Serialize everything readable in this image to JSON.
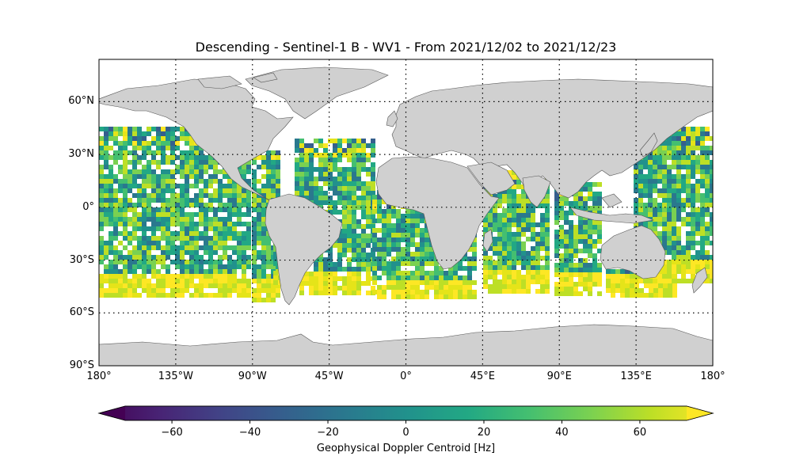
{
  "title": "Descending - Sentinel-1 B - WV1 - From 2021/12/02 to 2021/12/23",
  "lat_labels": [
    {
      "value": 60,
      "text": "60°N"
    },
    {
      "value": 30,
      "text": "30°N"
    },
    {
      "value": 0,
      "text": "0°"
    },
    {
      "value": -30,
      "text": "30°S"
    },
    {
      "value": -60,
      "text": "60°S"
    },
    {
      "value": -90,
      "text": "90°S"
    }
  ],
  "lon_labels": [
    {
      "value": -180,
      "text": "180°"
    },
    {
      "value": -135,
      "text": "135°W"
    },
    {
      "value": -90,
      "text": "90°W"
    },
    {
      "value": -45,
      "text": "45°W"
    },
    {
      "value": 0,
      "text": "0°"
    },
    {
      "value": 45,
      "text": "45°E"
    },
    {
      "value": 90,
      "text": "90°E"
    },
    {
      "value": 135,
      "text": "135°E"
    },
    {
      "value": 180,
      "text": "180°"
    }
  ],
  "colorbar": {
    "label": "Geophysical Doppler Centroid [Hz]",
    "min": -72,
    "max": 72,
    "ticks": [
      {
        "value": -60,
        "text": "−60"
      },
      {
        "value": -40,
        "text": "−40"
      },
      {
        "value": -20,
        "text": "−20"
      },
      {
        "value": 0,
        "text": "0"
      },
      {
        "value": 20,
        "text": "20"
      },
      {
        "value": 40,
        "text": "40"
      },
      {
        "value": 60,
        "text": "60"
      }
    ],
    "colormap": "viridis"
  },
  "colors": {
    "land": "#d0d0d0",
    "coast": "#555555",
    "grid": "#000000"
  }
}
